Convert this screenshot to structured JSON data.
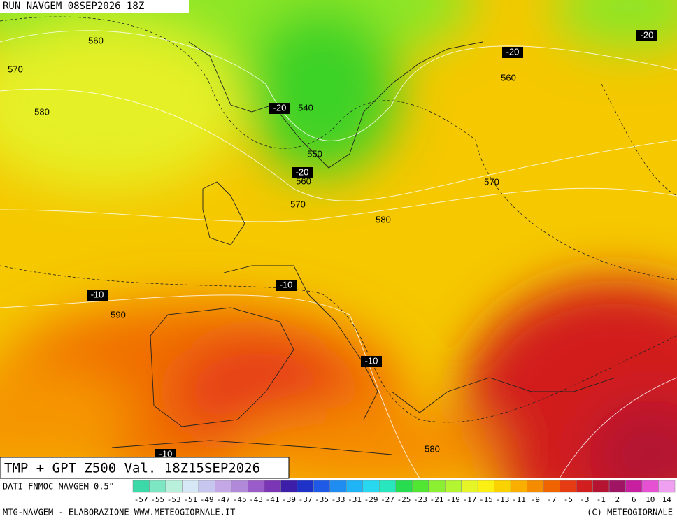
{
  "header": {
    "title": "RUN NAVGEM 08SEP2026 18Z"
  },
  "map": {
    "contour_labels": [
      "560",
      "570",
      "580",
      "-20",
      "540",
      "550",
      "-20",
      "560",
      "570",
      "580",
      "570",
      "-20",
      "560",
      "-20",
      "-10",
      "590",
      "-10",
      "-10",
      "580",
      "-10"
    ]
  },
  "caption": "TMP + GPT Z500 Val. 18Z15SEP2026",
  "source": "DATI FNMOC NAVGEM 0.5°",
  "scale": {
    "labels": [
      "-57",
      "-55",
      "-53",
      "-51",
      "-49",
      "-47",
      "-45",
      "-43",
      "-41",
      "-39",
      "-37",
      "-35",
      "-33",
      "-31",
      "-29",
      "-27",
      "-25",
      "-23",
      "-21",
      "-19",
      "-17",
      "-15",
      "-13",
      "-11",
      "-9",
      "-7",
      "-5",
      "-3",
      "-1",
      "2",
      "6",
      "10",
      "14"
    ],
    "colors": [
      "#3cd9a8",
      "#7de6c2",
      "#b9f0dc",
      "#d6e8f5",
      "#c6c6ee",
      "#c4a8e6",
      "#b08ad8",
      "#9a5cc8",
      "#7a36b4",
      "#3c1ea8",
      "#1e32c8",
      "#1e5ae6",
      "#1e8cf0",
      "#1eb4f5",
      "#28d7f0",
      "#28e6be",
      "#28dc50",
      "#50e632",
      "#8cf032",
      "#b4f532",
      "#e6f528",
      "#faf014",
      "#fad200",
      "#faaf00",
      "#f58c00",
      "#f06400",
      "#e63c14",
      "#d21e1e",
      "#b41432",
      "#a01464",
      "#c81ea0",
      "#e650d2",
      "#f0a0f0"
    ]
  },
  "footer": {
    "left": "MTG-NAVGEM - ELABORAZIONE WWW.METEOGIORNALE.IT",
    "right": "(C) METEOGIORNALE"
  }
}
